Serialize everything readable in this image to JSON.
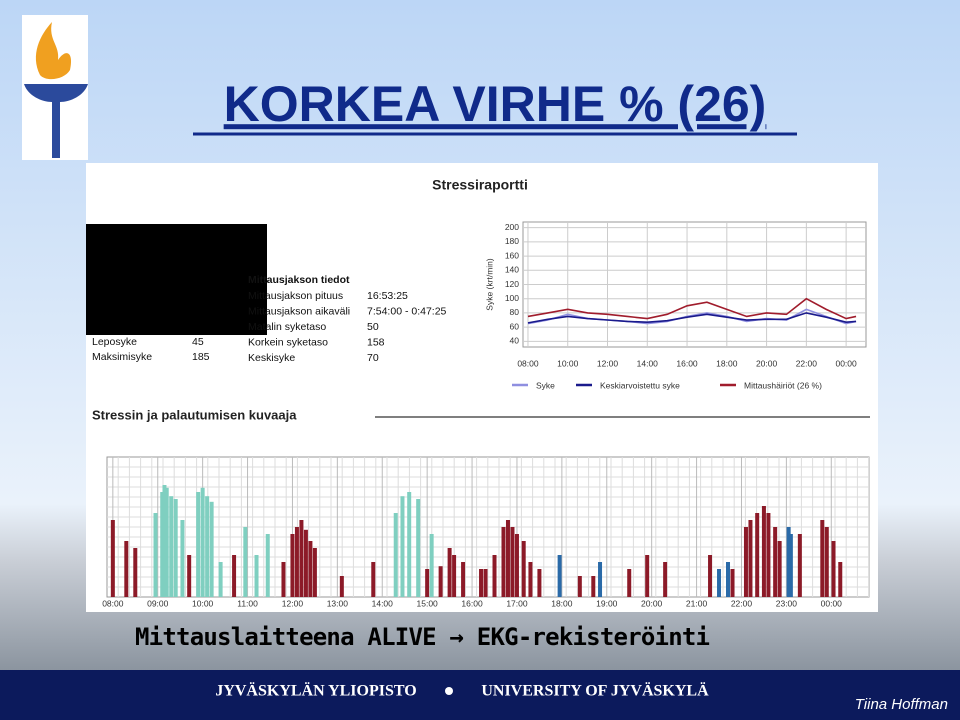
{
  "slide": {
    "title": "KORKEA VIRHE % (26)",
    "report_title": "Stressiraportti",
    "basic_rows": [
      [
        "Leposyke",
        "45"
      ],
      [
        "Maksimisyke",
        "185"
      ]
    ],
    "info_header": "Mittausjakson tiedot",
    "info_rows": [
      [
        "Mittausjakson pituus",
        "16:53:25"
      ],
      [
        "Mittausjakson aikaväli",
        "7:54:00 - 0:47:25"
      ],
      [
        "Matalin syketaso",
        "50"
      ],
      [
        "Korkein syketaso",
        "158"
      ],
      [
        "Keskisyke",
        "70"
      ]
    ],
    "section_title": "Stressin ja palautumisen kuvaaja",
    "caption": "Mittauslaitteena ALIVE → EKG-rekisteröinti",
    "footer_left": "JYVÄSKYLÄN YLIOPISTO",
    "footer_right": "UNIVERSITY OF JYVÄSKYLÄ",
    "author": "Tiina Hoffman"
  },
  "chart_data": [
    {
      "type": "line",
      "ylabel": "Syke (krt/min)",
      "xlim": [
        7.75,
        25
      ],
      "ylim": [
        32,
        208
      ],
      "xticks": [
        {
          "value": 8,
          "label": "08:00"
        },
        {
          "value": 10,
          "label": "10:00"
        },
        {
          "value": 12,
          "label": "12:00"
        },
        {
          "value": 14,
          "label": "14:00"
        },
        {
          "value": 16,
          "label": "16:00"
        },
        {
          "value": 18,
          "label": "18:00"
        },
        {
          "value": 20,
          "label": "20:00"
        },
        {
          "value": 22,
          "label": "22:00"
        },
        {
          "value": 24,
          "label": "00:00"
        }
      ],
      "yticks": [
        40,
        60,
        80,
        100,
        120,
        140,
        160,
        180,
        200
      ],
      "grid": true,
      "x": [
        8,
        9,
        10,
        11,
        12,
        13,
        14,
        15,
        16,
        17,
        18,
        19,
        20,
        21,
        22,
        23,
        24,
        24.5
      ],
      "series": [
        {
          "name": "Syke",
          "color": "#8f8fe0",
          "values": [
            65,
            70,
            78,
            72,
            70,
            68,
            65,
            68,
            75,
            80,
            75,
            68,
            72,
            70,
            85,
            75,
            65,
            68
          ]
        },
        {
          "name": "Keskiarvoistettu syke",
          "color": "#1a1a8c",
          "values": [
            66,
            71,
            75,
            72,
            70,
            68,
            67,
            69,
            74,
            78,
            74,
            70,
            71,
            71,
            80,
            74,
            67,
            68
          ]
        },
        {
          "name": "Mittaushäiriöt (26 %)",
          "color": "#a01c2c",
          "values": [
            75,
            80,
            85,
            80,
            78,
            75,
            72,
            78,
            90,
            95,
            85,
            75,
            80,
            78,
            100,
            85,
            72,
            75
          ]
        }
      ]
    },
    {
      "type": "bar",
      "xlim": [
        7.87,
        24.84
      ],
      "ylim": [
        0,
        100
      ],
      "xticks": [
        {
          "value": 8,
          "label": "08:00"
        },
        {
          "value": 9,
          "label": "09:00"
        },
        {
          "value": 10,
          "label": "10:00"
        },
        {
          "value": 11,
          "label": "11:00"
        },
        {
          "value": 12,
          "label": "12:00"
        },
        {
          "value": 13,
          "label": "13:00"
        },
        {
          "value": 14,
          "label": "14:00"
        },
        {
          "value": 15,
          "label": "15:00"
        },
        {
          "value": 16,
          "label": "16:00"
        },
        {
          "value": 17,
          "label": "17:00"
        },
        {
          "value": 18,
          "label": "18:00"
        },
        {
          "value": 19,
          "label": "19:00"
        },
        {
          "value": 20,
          "label": "20:00"
        },
        {
          "value": 21,
          "label": "21:00"
        },
        {
          "value": 22,
          "label": "22:00"
        },
        {
          "value": 23,
          "label": "23:00"
        },
        {
          "value": 24,
          "label": "00:00"
        }
      ],
      "grid": true,
      "series": [
        {
          "color": "#7fcfc0",
          "x": [
            8.95,
            9.1,
            9.15,
            9.2,
            9.3,
            9.4,
            9.55,
            9.9,
            10.0,
            10.1,
            10.2,
            10.4,
            10.95,
            11.2,
            11.45,
            14.3,
            14.45,
            14.6,
            14.8,
            15.1
          ],
          "values": [
            60,
            75,
            80,
            78,
            72,
            70,
            55,
            75,
            78,
            72,
            68,
            25,
            50,
            30,
            45,
            60,
            72,
            75,
            70,
            45
          ]
        },
        {
          "color": "#8c1a28",
          "x": [
            8.0,
            8.3,
            8.5,
            9.7,
            10.7,
            11.8,
            12.0,
            12.1,
            12.2,
            12.3,
            12.4,
            12.5,
            13.1,
            13.8,
            15.0,
            15.3,
            15.5,
            15.6,
            15.8,
            16.2,
            16.3,
            16.5,
            16.7,
            16.8,
            16.9,
            17.0,
            17.15,
            17.3,
            17.5,
            18.4,
            18.7,
            19.5,
            19.9,
            20.3,
            21.3,
            21.8,
            22.1,
            22.2,
            22.35,
            22.5,
            22.6,
            22.75,
            22.85,
            23.3,
            23.8,
            23.9,
            24.05,
            24.2
          ],
          "values": [
            55,
            40,
            35,
            30,
            30,
            25,
            45,
            50,
            55,
            48,
            40,
            35,
            15,
            25,
            20,
            22,
            35,
            30,
            25,
            20,
            20,
            30,
            50,
            55,
            50,
            45,
            40,
            25,
            20,
            15,
            15,
            20,
            30,
            25,
            30,
            20,
            50,
            55,
            60,
            65,
            60,
            50,
            40,
            45,
            55,
            50,
            40,
            25
          ]
        },
        {
          "color": "#2a6aa8",
          "x": [
            17.95,
            18.85,
            21.5,
            21.7,
            23.05,
            23.1
          ],
          "values": [
            30,
            25,
            20,
            25,
            50,
            45
          ]
        }
      ]
    }
  ]
}
